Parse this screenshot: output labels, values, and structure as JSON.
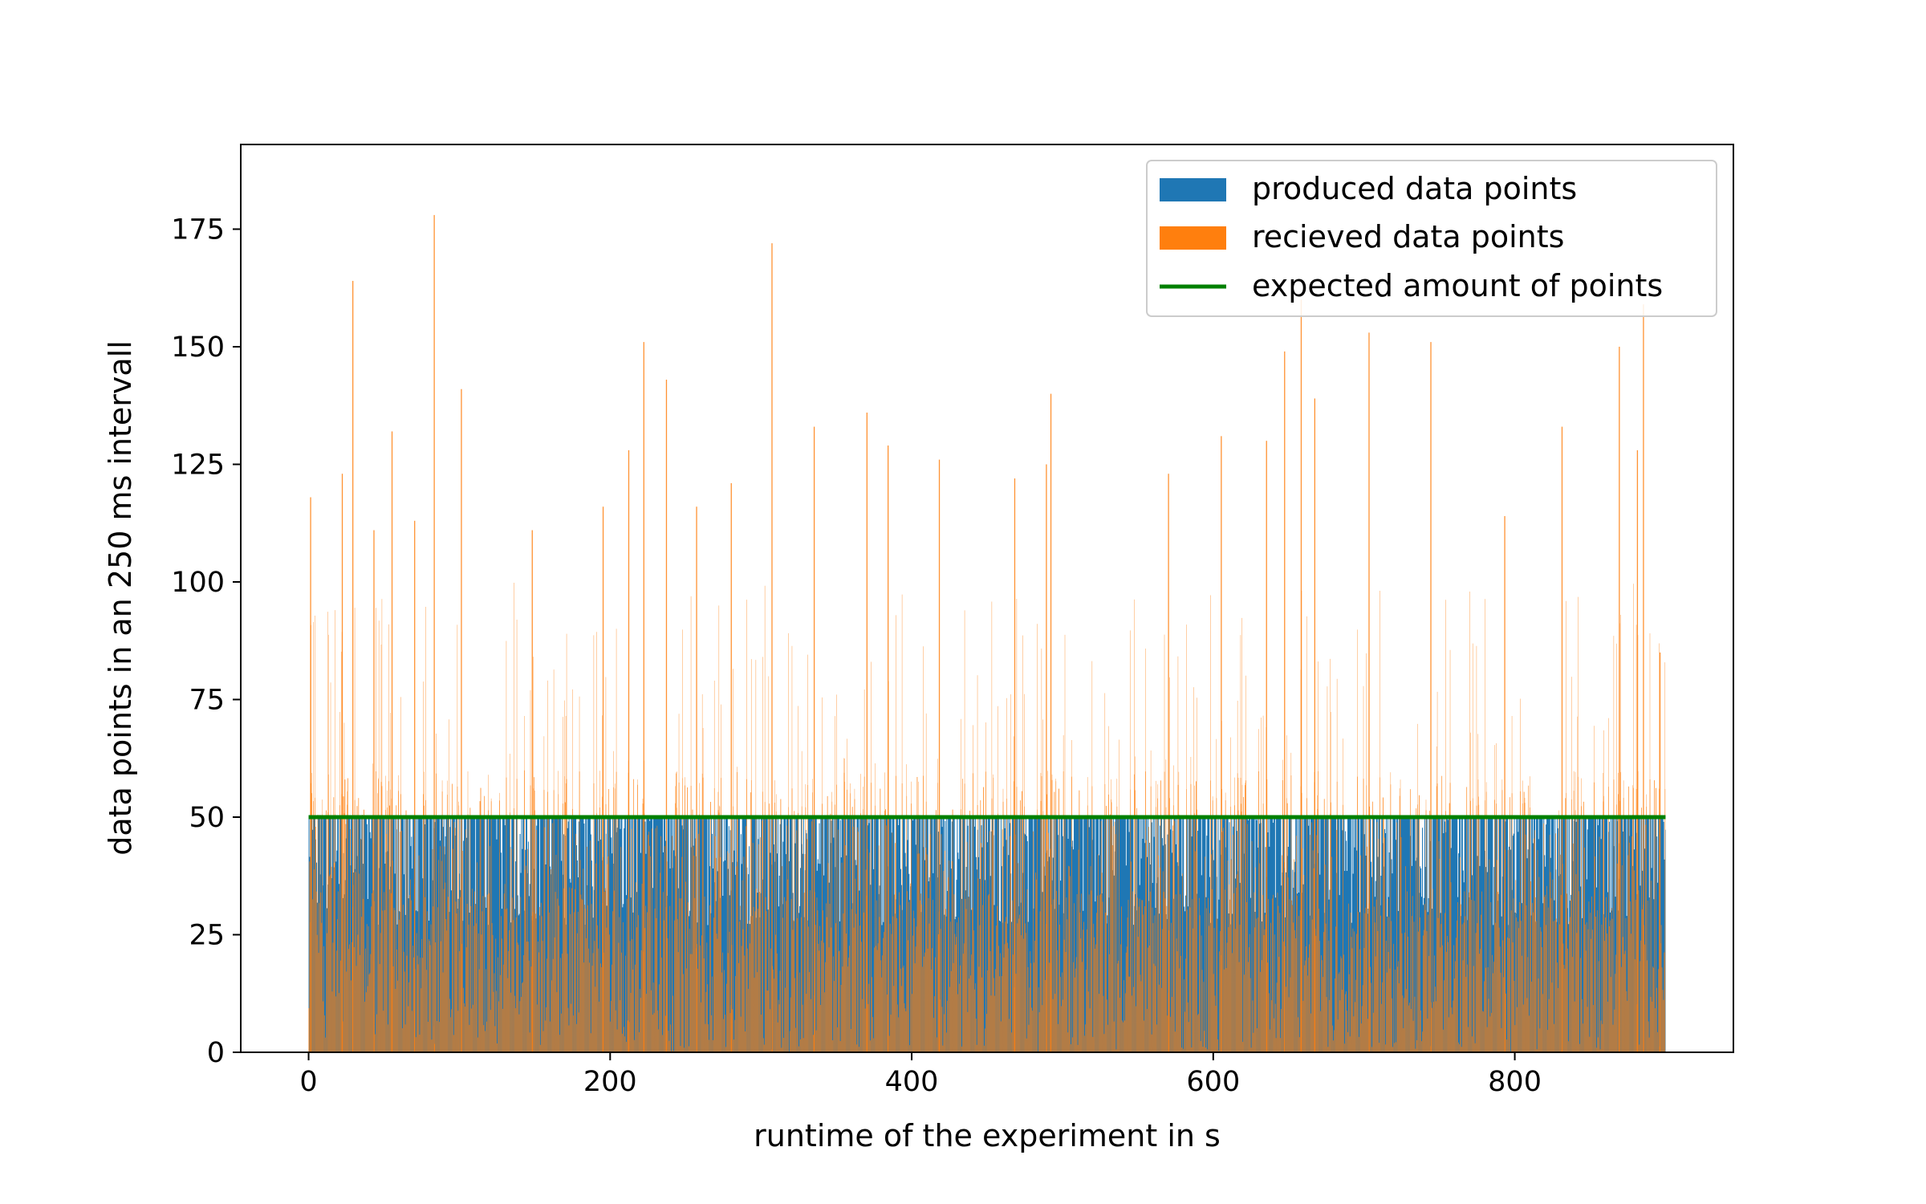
{
  "chart_data": {
    "type": "bar",
    "title": "",
    "xlabel": "runtime of the experiment in s",
    "ylabel": "data points in an 250 ms intervall",
    "xlim": [
      -45,
      945
    ],
    "ylim": [
      0,
      193
    ],
    "xticks": [
      0,
      200,
      400,
      600,
      800
    ],
    "yticks": [
      0,
      25,
      50,
      75,
      100,
      125,
      150,
      175
    ],
    "legend_position": "top-right",
    "interval_s": 0.25,
    "x_range": [
      0,
      900
    ],
    "series": [
      {
        "name": "produced data points",
        "kind": "bar",
        "color": "#1f77b4",
        "typical_value": 50,
        "min_value": 27
      },
      {
        "name": "recieved data points",
        "kind": "bar",
        "color": "#ff7f0e",
        "typical_range": [
          0,
          70
        ],
        "spikes": [
          {
            "x": 1,
            "y": 118
          },
          {
            "x": 22,
            "y": 123
          },
          {
            "x": 29,
            "y": 164
          },
          {
            "x": 43,
            "y": 111
          },
          {
            "x": 55,
            "y": 132
          },
          {
            "x": 70,
            "y": 113
          },
          {
            "x": 83,
            "y": 178
          },
          {
            "x": 101,
            "y": 141
          },
          {
            "x": 148,
            "y": 111
          },
          {
            "x": 195,
            "y": 116
          },
          {
            "x": 212,
            "y": 128
          },
          {
            "x": 222,
            "y": 151
          },
          {
            "x": 237,
            "y": 143
          },
          {
            "x": 257,
            "y": 116
          },
          {
            "x": 280,
            "y": 121
          },
          {
            "x": 307,
            "y": 172
          },
          {
            "x": 335,
            "y": 133
          },
          {
            "x": 370,
            "y": 136
          },
          {
            "x": 384,
            "y": 129
          },
          {
            "x": 418,
            "y": 126
          },
          {
            "x": 468,
            "y": 122
          },
          {
            "x": 489,
            "y": 125
          },
          {
            "x": 492,
            "y": 140
          },
          {
            "x": 570,
            "y": 123
          },
          {
            "x": 605,
            "y": 131
          },
          {
            "x": 635,
            "y": 130
          },
          {
            "x": 647,
            "y": 149
          },
          {
            "x": 658,
            "y": 160
          },
          {
            "x": 667,
            "y": 139
          },
          {
            "x": 703,
            "y": 153
          },
          {
            "x": 744,
            "y": 151
          },
          {
            "x": 793,
            "y": 114
          },
          {
            "x": 831,
            "y": 133
          },
          {
            "x": 869,
            "y": 150
          },
          {
            "x": 881,
            "y": 128
          },
          {
            "x": 885,
            "y": 159
          },
          {
            "x": 896,
            "y": 85
          }
        ]
      },
      {
        "name": "expected amount of points",
        "kind": "line",
        "color": "#008000",
        "x": [
          0,
          900
        ],
        "y": [
          50,
          50
        ]
      }
    ]
  }
}
